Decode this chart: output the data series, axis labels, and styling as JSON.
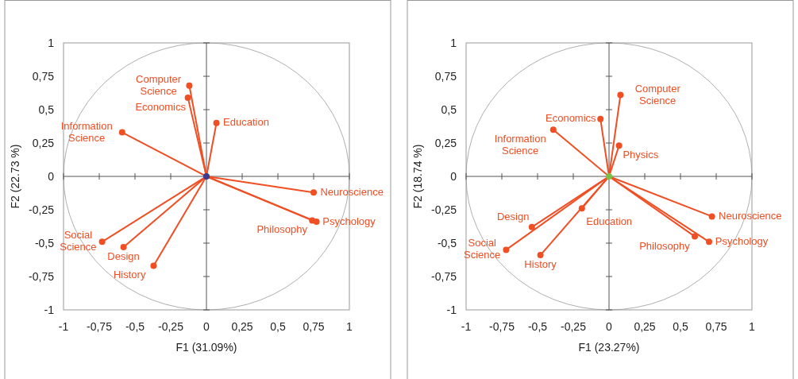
{
  "chart_data": [
    {
      "type": "line",
      "xlabel": "F1 (31.09%)",
      "ylabel": "F2 (22.73 %)",
      "xlim": [
        -1,
        1
      ],
      "ylim": [
        -1,
        1
      ],
      "xticks": [
        {
          "value": -1,
          "label": "-1"
        },
        {
          "value": -0.75,
          "label": "-0,75"
        },
        {
          "value": -0.5,
          "label": "-0,5"
        },
        {
          "value": -0.25,
          "label": "-0,25"
        },
        {
          "value": 0,
          "label": "0"
        },
        {
          "value": 0.25,
          "label": "0,25"
        },
        {
          "value": 0.5,
          "label": "0,5"
        },
        {
          "value": 0.75,
          "label": "0,75"
        },
        {
          "value": 1,
          "label": "1"
        }
      ],
      "yticks": [
        {
          "value": -1,
          "label": "-1"
        },
        {
          "value": -0.75,
          "label": "-0,75"
        },
        {
          "value": -0.5,
          "label": "-0,5"
        },
        {
          "value": -0.25,
          "label": "-0,25"
        },
        {
          "value": 0,
          "label": "0"
        },
        {
          "value": 0.25,
          "label": "0,25"
        },
        {
          "value": 0.5,
          "label": "0,5"
        },
        {
          "value": 0.75,
          "label": "0,75"
        },
        {
          "value": 1,
          "label": "1"
        }
      ],
      "marker": "circle",
      "series": [
        {
          "name": "Computer Science",
          "color": "#f04e23",
          "x": [
            0,
            -0.12
          ],
          "values": [
            0,
            0.68
          ]
        },
        {
          "name": "Economics",
          "color": "#f04e23",
          "x": [
            0,
            -0.13
          ],
          "values": [
            0,
            0.59
          ]
        },
        {
          "name": "Education",
          "color": "#f04e23",
          "x": [
            0,
            0.07
          ],
          "values": [
            0,
            0.4
          ]
        },
        {
          "name": "Information Science",
          "color": "#f04e23",
          "x": [
            0,
            -0.59
          ],
          "values": [
            0,
            0.33
          ]
        },
        {
          "name": "Neuroscience",
          "color": "#f04e23",
          "x": [
            0,
            0.75
          ],
          "values": [
            0,
            -0.12
          ]
        },
        {
          "name": "Psychology",
          "color": "#f04e23",
          "x": [
            0,
            0.77
          ],
          "values": [
            0,
            -0.34
          ]
        },
        {
          "name": "Philosophy",
          "color": "#f04e23",
          "x": [
            0,
            0.74
          ],
          "values": [
            0,
            -0.33
          ]
        },
        {
          "name": "Social Science",
          "color": "#f04e23",
          "x": [
            0,
            -0.73
          ],
          "values": [
            0,
            -0.49
          ]
        },
        {
          "name": "Design",
          "color": "#f04e23",
          "x": [
            0,
            -0.58
          ],
          "values": [
            0,
            -0.53
          ]
        },
        {
          "name": "History",
          "color": "#f04e23",
          "x": [
            0,
            -0.37
          ],
          "values": [
            0,
            -0.67
          ]
        },
        {
          "type": "scatter",
          "color": "#3b3b8f",
          "x": [
            0
          ],
          "values": [
            0
          ]
        }
      ]
    },
    {
      "type": "line",
      "xlabel": "F1 (23.27%)",
      "ylabel": "F2 (18.74 %)",
      "xlim": [
        -1,
        1
      ],
      "ylim": [
        -1,
        1
      ],
      "xticks": [
        {
          "value": -1,
          "label": "-1"
        },
        {
          "value": -0.75,
          "label": "-0,75"
        },
        {
          "value": -0.5,
          "label": "-0,5"
        },
        {
          "value": -0.25,
          "label": "-0,25"
        },
        {
          "value": 0,
          "label": "0"
        },
        {
          "value": 0.25,
          "label": "0,25"
        },
        {
          "value": 0.5,
          "label": "0,5"
        },
        {
          "value": 0.75,
          "label": "0,75"
        },
        {
          "value": 1,
          "label": "1"
        }
      ],
      "yticks": [
        {
          "value": -1,
          "label": "-1"
        },
        {
          "value": -0.75,
          "label": "-0,75"
        },
        {
          "value": -0.5,
          "label": "-0,5"
        },
        {
          "value": -0.25,
          "label": "-0,25"
        },
        {
          "value": 0,
          "label": "0"
        },
        {
          "value": 0.25,
          "label": "0,25"
        },
        {
          "value": 0.5,
          "label": "0,5"
        },
        {
          "value": 0.75,
          "label": "0,75"
        },
        {
          "value": 1,
          "label": "1"
        }
      ],
      "marker": "circle",
      "series": [
        {
          "name": "Computer Science",
          "color": "#f04e23",
          "x": [
            0,
            0.08
          ],
          "values": [
            0,
            0.61
          ]
        },
        {
          "name": "Economics",
          "color": "#f04e23",
          "x": [
            0,
            -0.06
          ],
          "values": [
            0,
            0.43
          ]
        },
        {
          "name": "Information Science",
          "color": "#f04e23",
          "x": [
            0,
            -0.39
          ],
          "values": [
            0,
            0.35
          ]
        },
        {
          "name": "Physics",
          "color": "#f04e23",
          "x": [
            0,
            0.07
          ],
          "values": [
            0,
            0.23
          ]
        },
        {
          "name": "Neuroscience",
          "color": "#f04e23",
          "x": [
            0,
            0.72
          ],
          "values": [
            0,
            -0.3
          ]
        },
        {
          "name": "Psychology",
          "color": "#f04e23",
          "x": [
            0,
            0.7
          ],
          "values": [
            0,
            -0.49
          ]
        },
        {
          "name": "Philosophy",
          "color": "#f04e23",
          "x": [
            0,
            0.6
          ],
          "values": [
            0,
            -0.45
          ]
        },
        {
          "name": "Education",
          "color": "#f04e23",
          "x": [
            0,
            -0.19
          ],
          "values": [
            0,
            -0.24
          ]
        },
        {
          "name": "Design",
          "color": "#f04e23",
          "x": [
            0,
            -0.54
          ],
          "values": [
            0,
            -0.38
          ]
        },
        {
          "name": "Social Science",
          "color": "#f04e23",
          "x": [
            0,
            -0.72
          ],
          "values": [
            0,
            -0.55
          ]
        },
        {
          "name": "History",
          "color": "#f04e23",
          "x": [
            0,
            -0.48
          ],
          "values": [
            0,
            -0.59
          ]
        },
        {
          "type": "scatter",
          "color": "#7ac143",
          "x": [
            0
          ],
          "values": [
            0
          ]
        }
      ]
    }
  ]
}
